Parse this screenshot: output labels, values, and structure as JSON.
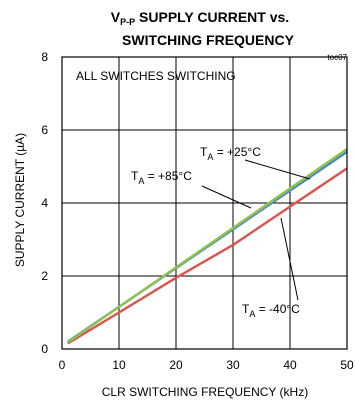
{
  "chart_data": {
    "type": "line",
    "title_prefix": "V",
    "title_subscript": "P-P",
    "title_line1_rest": " SUPPLY CURRENT vs.",
    "title_line2": "SWITCHING FREQUENCY",
    "figure_id": "toc07",
    "xlabel": "CLR SWITCHING FREQUENCY (kHz)",
    "ylabel": "SUPPLY CURRENT (µA)",
    "xlim": [
      0,
      50
    ],
    "ylim": [
      0,
      8
    ],
    "xticks": [
      0,
      10,
      20,
      30,
      40,
      50
    ],
    "yticks": [
      0,
      2,
      4,
      6,
      8
    ],
    "grid": true,
    "condition_note": "ALL SWITCHES SWITCHING",
    "series": [
      {
        "name": "T_A = +25°C",
        "color": "#4a86c8",
        "x": [
          1,
          50
        ],
        "y": [
          0.2,
          5.4
        ]
      },
      {
        "name": "T_A = +85°C",
        "color": "#8fc34a",
        "x": [
          1,
          50
        ],
        "y": [
          0.18,
          5.48
        ]
      },
      {
        "name": "T_A = -40°C",
        "color": "#d9534f",
        "x": [
          1,
          10,
          20,
          30,
          40,
          50
        ],
        "y": [
          0.15,
          1.0,
          1.95,
          2.85,
          3.9,
          4.95
        ]
      }
    ],
    "annotations": [
      {
        "label_main": "T",
        "label_sub": "A",
        "label_rest": " = +25°C"
      },
      {
        "label_main": "T",
        "label_sub": "A",
        "label_rest": " = +85°C"
      },
      {
        "label_main": "T",
        "label_sub": "A",
        "label_rest": " = -40°C"
      }
    ]
  }
}
